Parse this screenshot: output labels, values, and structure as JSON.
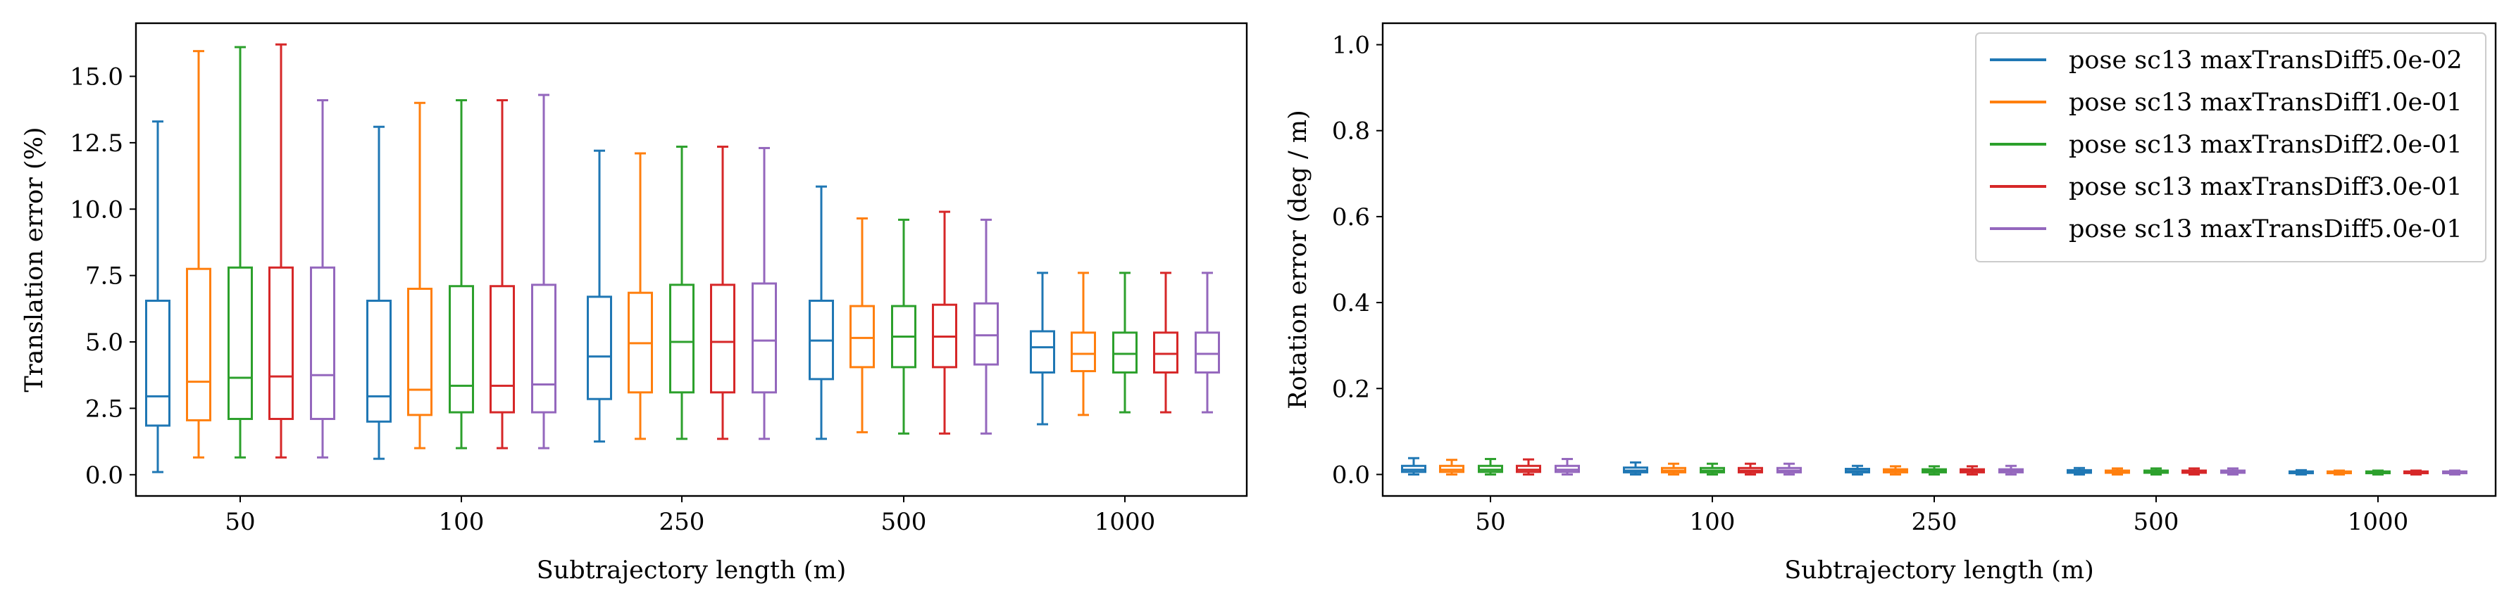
{
  "chart_data": [
    {
      "type": "box",
      "title": "",
      "xlabel": "Subtrajectory length (m)",
      "ylabel": "Translation error (%)",
      "categories": [
        "50",
        "100",
        "250",
        "500",
        "1000"
      ],
      "ylim": [
        -0.8,
        17.0
      ],
      "yticks": [
        0.0,
        2.5,
        5.0,
        7.5,
        10.0,
        12.5,
        15.0
      ],
      "ytick_labels": [
        "0.0",
        "2.5",
        "5.0",
        "7.5",
        "10.0",
        "12.5",
        "15.0"
      ],
      "grid": false,
      "legend": "none",
      "series": [
        {
          "name": "pose sc13 maxTransDiff5.0e-02",
          "color": "#1f77b4",
          "boxes": [
            {
              "whislo": 0.1,
              "q1": 1.85,
              "med": 2.95,
              "q3": 6.55,
              "whishi": 13.3
            },
            {
              "whislo": 0.6,
              "q1": 2.0,
              "med": 2.95,
              "q3": 6.55,
              "whishi": 13.1
            },
            {
              "whislo": 1.25,
              "q1": 2.85,
              "med": 4.45,
              "q3": 6.7,
              "whishi": 12.2
            },
            {
              "whislo": 1.35,
              "q1": 3.6,
              "med": 5.05,
              "q3": 6.55,
              "whishi": 10.85
            },
            {
              "whislo": 1.9,
              "q1": 3.85,
              "med": 4.8,
              "q3": 5.4,
              "whishi": 7.6
            }
          ]
        },
        {
          "name": "pose sc13 maxTransDiff1.0e-01",
          "color": "#ff7f0e",
          "boxes": [
            {
              "whislo": 0.65,
              "q1": 2.05,
              "med": 3.5,
              "q3": 7.75,
              "whishi": 15.95
            },
            {
              "whislo": 1.0,
              "q1": 2.25,
              "med": 3.2,
              "q3": 7.0,
              "whishi": 14.0
            },
            {
              "whislo": 1.35,
              "q1": 3.1,
              "med": 4.95,
              "q3": 6.85,
              "whishi": 12.1
            },
            {
              "whislo": 1.6,
              "q1": 4.05,
              "med": 5.15,
              "q3": 6.35,
              "whishi": 9.65
            },
            {
              "whislo": 2.25,
              "q1": 3.9,
              "med": 4.55,
              "q3": 5.35,
              "whishi": 7.6
            }
          ]
        },
        {
          "name": "pose sc13 maxTransDiff2.0e-01",
          "color": "#2ca02c",
          "boxes": [
            {
              "whislo": 0.65,
              "q1": 2.1,
              "med": 3.65,
              "q3": 7.8,
              "whishi": 16.1
            },
            {
              "whislo": 1.0,
              "q1": 2.35,
              "med": 3.35,
              "q3": 7.1,
              "whishi": 14.1
            },
            {
              "whislo": 1.35,
              "q1": 3.1,
              "med": 5.0,
              "q3": 7.15,
              "whishi": 12.35
            },
            {
              "whislo": 1.55,
              "q1": 4.05,
              "med": 5.2,
              "q3": 6.35,
              "whishi": 9.6
            },
            {
              "whislo": 2.35,
              "q1": 3.85,
              "med": 4.55,
              "q3": 5.35,
              "whishi": 7.6
            }
          ]
        },
        {
          "name": "pose sc13 maxTransDiff3.0e-01",
          "color": "#d62728",
          "boxes": [
            {
              "whislo": 0.65,
              "q1": 2.1,
              "med": 3.7,
              "q3": 7.8,
              "whishi": 16.2
            },
            {
              "whislo": 1.0,
              "q1": 2.35,
              "med": 3.35,
              "q3": 7.1,
              "whishi": 14.1
            },
            {
              "whislo": 1.35,
              "q1": 3.1,
              "med": 5.0,
              "q3": 7.15,
              "whishi": 12.35
            },
            {
              "whislo": 1.55,
              "q1": 4.05,
              "med": 5.2,
              "q3": 6.4,
              "whishi": 9.9
            },
            {
              "whislo": 2.35,
              "q1": 3.85,
              "med": 4.55,
              "q3": 5.35,
              "whishi": 7.6
            }
          ]
        },
        {
          "name": "pose sc13 maxTransDiff5.0e-01",
          "color": "#9467bd",
          "boxes": [
            {
              "whislo": 0.65,
              "q1": 2.1,
              "med": 3.75,
              "q3": 7.8,
              "whishi": 14.1
            },
            {
              "whislo": 1.0,
              "q1": 2.35,
              "med": 3.4,
              "q3": 7.15,
              "whishi": 14.3
            },
            {
              "whislo": 1.35,
              "q1": 3.1,
              "med": 5.05,
              "q3": 7.2,
              "whishi": 12.3
            },
            {
              "whislo": 1.55,
              "q1": 4.15,
              "med": 5.25,
              "q3": 6.45,
              "whishi": 9.6
            },
            {
              "whislo": 2.35,
              "q1": 3.85,
              "med": 4.55,
              "q3": 5.35,
              "whishi": 7.6
            }
          ]
        }
      ]
    },
    {
      "type": "box",
      "title": "",
      "xlabel": "Subtrajectory length (m)",
      "ylabel": "Rotation error (deg / m)",
      "categories": [
        "50",
        "100",
        "250",
        "500",
        "1000"
      ],
      "ylim": [
        -0.05,
        1.05
      ],
      "yticks": [
        0.0,
        0.2,
        0.4,
        0.6,
        0.8,
        1.0
      ],
      "ytick_labels": [
        "0.0",
        "0.2",
        "0.4",
        "0.6",
        "0.8",
        "1.0"
      ],
      "grid": false,
      "legend": "top-right",
      "series": [
        {
          "name": "pose sc13 maxTransDiff5.0e-02",
          "color": "#1f77b4",
          "boxes": [
            {
              "whislo": 0.0,
              "q1": 0.006,
              "med": 0.011,
              "q3": 0.02,
              "whishi": 0.038
            },
            {
              "whislo": 0.0,
              "q1": 0.005,
              "med": 0.009,
              "q3": 0.016,
              "whishi": 0.028
            },
            {
              "whislo": 0.0,
              "q1": 0.005,
              "med": 0.008,
              "q3": 0.013,
              "whishi": 0.02
            },
            {
              "whislo": 0.0,
              "q1": 0.004,
              "med": 0.007,
              "q3": 0.01,
              "whishi": 0.015
            },
            {
              "whislo": 0.0,
              "q1": 0.003,
              "med": 0.005,
              "q3": 0.007,
              "whishi": 0.01
            }
          ]
        },
        {
          "name": "pose sc13 maxTransDiff1.0e-01",
          "color": "#ff7f0e",
          "boxes": [
            {
              "whislo": 0.0,
              "q1": 0.006,
              "med": 0.011,
              "q3": 0.02,
              "whishi": 0.034
            },
            {
              "whislo": 0.0,
              "q1": 0.005,
              "med": 0.009,
              "q3": 0.015,
              "whishi": 0.025
            },
            {
              "whislo": 0.0,
              "q1": 0.005,
              "med": 0.008,
              "q3": 0.012,
              "whishi": 0.019
            },
            {
              "whislo": 0.0,
              "q1": 0.004,
              "med": 0.006,
              "q3": 0.009,
              "whishi": 0.014
            },
            {
              "whislo": 0.0,
              "q1": 0.003,
              "med": 0.005,
              "q3": 0.007,
              "whishi": 0.009
            }
          ]
        },
        {
          "name": "pose sc13 maxTransDiff2.0e-01",
          "color": "#2ca02c",
          "boxes": [
            {
              "whislo": 0.0,
              "q1": 0.006,
              "med": 0.011,
              "q3": 0.02,
              "whishi": 0.036
            },
            {
              "whislo": 0.0,
              "q1": 0.005,
              "med": 0.009,
              "q3": 0.015,
              "whishi": 0.025
            },
            {
              "whislo": 0.0,
              "q1": 0.005,
              "med": 0.008,
              "q3": 0.012,
              "whishi": 0.019
            },
            {
              "whislo": 0.0,
              "q1": 0.004,
              "med": 0.006,
              "q3": 0.009,
              "whishi": 0.014
            },
            {
              "whislo": 0.0,
              "q1": 0.003,
              "med": 0.005,
              "q3": 0.007,
              "whishi": 0.009
            }
          ]
        },
        {
          "name": "pose sc13 maxTransDiff3.0e-01",
          "color": "#d62728",
          "boxes": [
            {
              "whislo": 0.0,
              "q1": 0.006,
              "med": 0.011,
              "q3": 0.02,
              "whishi": 0.035
            },
            {
              "whislo": 0.0,
              "q1": 0.005,
              "med": 0.009,
              "q3": 0.015,
              "whishi": 0.025
            },
            {
              "whislo": 0.0,
              "q1": 0.005,
              "med": 0.008,
              "q3": 0.012,
              "whishi": 0.019
            },
            {
              "whislo": 0.0,
              "q1": 0.004,
              "med": 0.006,
              "q3": 0.009,
              "whishi": 0.014
            },
            {
              "whislo": 0.0,
              "q1": 0.003,
              "med": 0.005,
              "q3": 0.007,
              "whishi": 0.009
            }
          ]
        },
        {
          "name": "pose sc13 maxTransDiff5.0e-01",
          "color": "#9467bd",
          "boxes": [
            {
              "whislo": 0.0,
              "q1": 0.006,
              "med": 0.011,
              "q3": 0.02,
              "whishi": 0.036
            },
            {
              "whislo": 0.0,
              "q1": 0.005,
              "med": 0.009,
              "q3": 0.015,
              "whishi": 0.025
            },
            {
              "whislo": 0.0,
              "q1": 0.005,
              "med": 0.008,
              "q3": 0.012,
              "whishi": 0.02
            },
            {
              "whislo": 0.0,
              "q1": 0.004,
              "med": 0.006,
              "q3": 0.009,
              "whishi": 0.014
            },
            {
              "whislo": 0.0,
              "q1": 0.003,
              "med": 0.005,
              "q3": 0.007,
              "whishi": 0.009
            }
          ]
        }
      ]
    }
  ]
}
